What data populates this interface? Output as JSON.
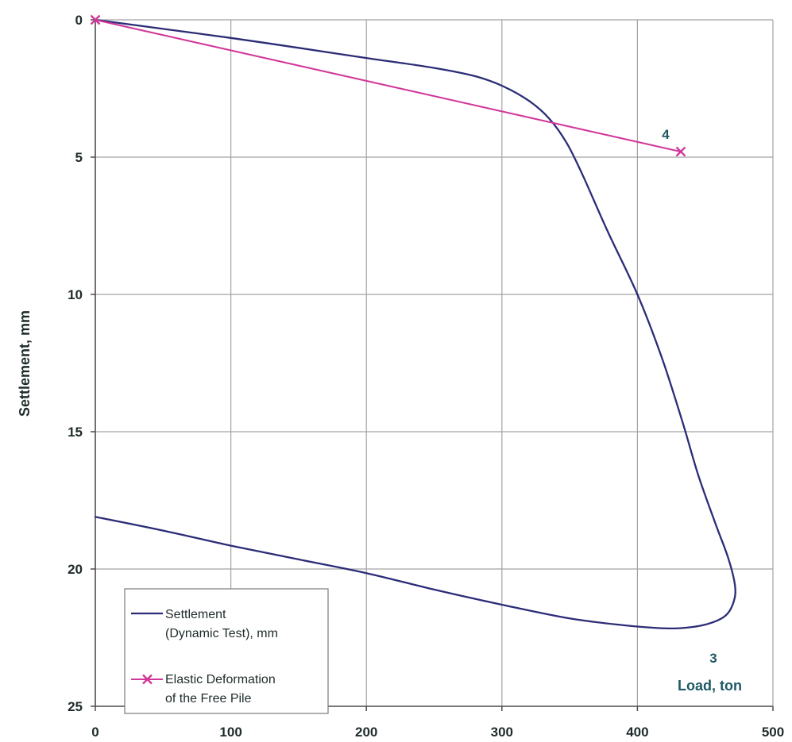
{
  "chart_data": {
    "type": "line",
    "xlabel": "Load, ton",
    "ylabel": "Settlement, mm",
    "xlim": [
      0,
      500
    ],
    "ylim": [
      0,
      25
    ],
    "y_axis_inverted": true,
    "x_ticks": [
      0,
      100,
      200,
      300,
      400,
      500
    ],
    "y_ticks": [
      0,
      5,
      10,
      15,
      20,
      25
    ],
    "grid": true,
    "legend_position": "bottom-left",
    "series": [
      {
        "label_lines": [
          "Settlement",
          "(Dynamic Test), mm"
        ],
        "color": "#2b2c76",
        "marker": "none",
        "smooth": true,
        "points": [
          [
            0,
            0
          ],
          [
            50,
            0.33
          ],
          [
            100,
            0.66
          ],
          [
            150,
            1.02
          ],
          [
            200,
            1.39
          ],
          [
            250,
            1.75
          ],
          [
            280,
            2.05
          ],
          [
            300,
            2.4
          ],
          [
            320,
            2.95
          ],
          [
            335,
            3.6
          ],
          [
            348,
            4.5
          ],
          [
            360,
            5.7
          ],
          [
            378,
            7.7
          ],
          [
            400,
            10.0
          ],
          [
            418,
            12.3
          ],
          [
            433,
            14.6
          ],
          [
            445,
            16.6
          ],
          [
            458,
            18.4
          ],
          [
            467,
            19.6
          ],
          [
            472,
            20.6
          ],
          [
            471,
            21.2
          ],
          [
            465,
            21.7
          ],
          [
            452,
            22.0
          ],
          [
            433,
            22.15
          ],
          [
            415,
            22.15
          ],
          [
            390,
            22.05
          ],
          [
            350,
            21.8
          ],
          [
            300,
            21.3
          ],
          [
            250,
            20.75
          ],
          [
            200,
            20.15
          ],
          [
            150,
            19.65
          ],
          [
            100,
            19.15
          ],
          [
            50,
            18.6
          ],
          [
            0,
            18.1
          ]
        ]
      },
      {
        "label_lines": [
          "Elastic Deformation",
          "of the Free Pile"
        ],
        "color": "#d2379a",
        "marker": "x",
        "smooth": false,
        "points": [
          [
            0,
            0
          ],
          [
            432,
            4.8
          ]
        ]
      }
    ],
    "annotations": [
      {
        "text": "4"
      },
      {
        "text": "3"
      }
    ]
  },
  "colors": {
    "axis_title": "#1d5964",
    "annotation": "#1d5964",
    "grid": "#a3a3a3",
    "axis": "#4d4d4d",
    "tick_label": "#1f2b2b",
    "legend_border": "#7a7a7a"
  }
}
